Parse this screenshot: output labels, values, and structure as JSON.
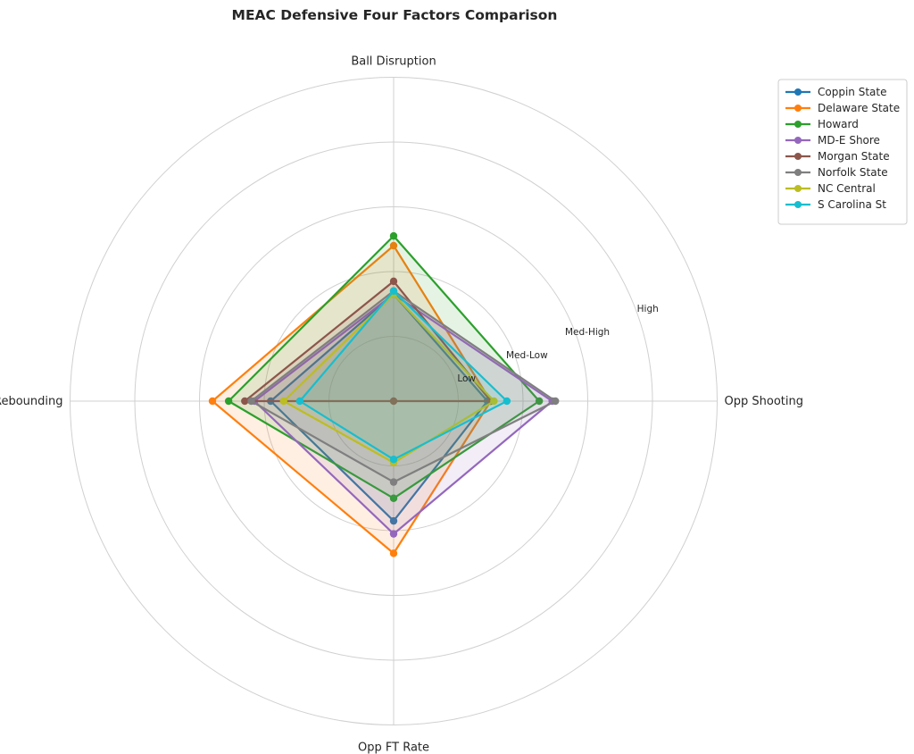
{
  "chart_data": {
    "type": "radar",
    "title": "MEAC Defensive Four Factors Comparison",
    "axes": [
      "Ball Disruption",
      "Opp Shooting",
      "Opp FT Rate",
      "Def Rebounding"
    ],
    "rings": {
      "max": 5,
      "levels": [
        1,
        2,
        3,
        4,
        5
      ],
      "labels": [
        {
          "level": 1,
          "text": "Low"
        },
        {
          "level": 2,
          "text": "Med-Low"
        },
        {
          "level": 3,
          "text": "Med-High"
        },
        {
          "level": 4,
          "text": "High"
        }
      ]
    },
    "legend_position": "top-right",
    "grid": true,
    "series": [
      {
        "name": "Coppin State",
        "color": "#1f77b4",
        "values": [
          1.65,
          1.45,
          1.85,
          1.9
        ]
      },
      {
        "name": "Delaware State",
        "color": "#ff7f0e",
        "values": [
          2.4,
          1.5,
          2.35,
          2.8
        ]
      },
      {
        "name": "Howard",
        "color": "#2ca02c",
        "values": [
          2.55,
          2.25,
          1.5,
          2.55
        ]
      },
      {
        "name": "MD-E Shore",
        "color": "#9467bd",
        "values": [
          1.65,
          2.45,
          2.05,
          2.15
        ]
      },
      {
        "name": "Morgan State",
        "color": "#8c564b",
        "values": [
          1.85,
          1.5,
          0.0,
          2.3
        ]
      },
      {
        "name": "Norfolk State",
        "color": "#7f7f7f",
        "values": [
          1.7,
          2.5,
          1.25,
          2.2
        ]
      },
      {
        "name": "NC Central",
        "color": "#bcbd22",
        "values": [
          1.65,
          1.55,
          0.95,
          1.7
        ]
      },
      {
        "name": "S Carolina St",
        "color": "#17becf",
        "values": [
          1.7,
          1.75,
          0.9,
          1.45
        ]
      }
    ]
  }
}
